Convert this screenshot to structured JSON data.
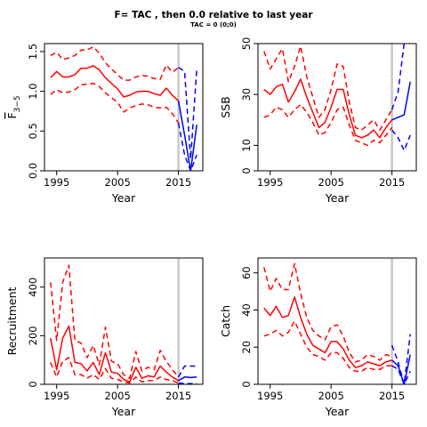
{
  "figure": {
    "title": "F= TAC , then 0.0  relative to last year",
    "subtitle": "TAC = 0 (0;0)"
  },
  "colors": {
    "historic": "#ff0000",
    "forecast": "#0000ff",
    "marker_line": "#c8c8c8"
  },
  "chart_data": [
    {
      "type": "line",
      "id": "fbar",
      "ylabel": "F3-5 (bar)",
      "xlabel": "Year",
      "xlim": [
        1993,
        2019
      ],
      "ylim": [
        0,
        1.6
      ],
      "xticks": [
        1995,
        2005,
        2015
      ],
      "yticks": [
        "0.0",
        "0.5",
        "1.0",
        "1.5"
      ],
      "ytick_values": [
        0,
        0.5,
        1.0,
        1.5
      ],
      "assessment_year": 2015,
      "series": [
        {
          "part": "historic",
          "style": "solid",
          "x": [
            1994,
            1995,
            1996,
            1997,
            1998,
            1999,
            2000,
            2001,
            2002,
            2003,
            2004,
            2005,
            2006,
            2007,
            2008,
            2009,
            2010,
            2011,
            2012,
            2013,
            2014,
            2015
          ],
          "values": [
            1.17,
            1.25,
            1.18,
            1.18,
            1.21,
            1.29,
            1.29,
            1.32,
            1.27,
            1.17,
            1.1,
            1.03,
            0.93,
            0.95,
            0.99,
            1.0,
            1.0,
            0.97,
            0.95,
            1.04,
            0.95,
            0.88
          ]
        },
        {
          "part": "historic",
          "style": "dashed",
          "x": [
            1994,
            1995,
            1996,
            1997,
            1998,
            1999,
            2000,
            2001,
            2002,
            2003,
            2004,
            2005,
            2006,
            2007,
            2008,
            2009,
            2010,
            2011,
            2012,
            2013,
            2014,
            2015
          ],
          "values": [
            1.45,
            1.49,
            1.4,
            1.42,
            1.45,
            1.52,
            1.52,
            1.56,
            1.48,
            1.36,
            1.28,
            1.21,
            1.14,
            1.14,
            1.18,
            1.2,
            1.19,
            1.16,
            1.15,
            1.33,
            1.24,
            1.3
          ]
        },
        {
          "part": "historic",
          "style": "dashed",
          "x": [
            1994,
            1995,
            1996,
            1997,
            1998,
            1999,
            2000,
            2001,
            2002,
            2003,
            2004,
            2005,
            2006,
            2007,
            2008,
            2009,
            2010,
            2011,
            2012,
            2013,
            2014,
            2015
          ],
          "values": [
            0.96,
            1.02,
            0.98,
            0.99,
            1.02,
            1.08,
            1.09,
            1.1,
            1.06,
            0.98,
            0.92,
            0.86,
            0.74,
            0.79,
            0.82,
            0.84,
            0.83,
            0.8,
            0.79,
            0.8,
            0.72,
            0.6
          ]
        },
        {
          "part": "forecast",
          "style": "solid",
          "x": [
            2015,
            2016,
            2017,
            2018
          ],
          "values": [
            0.88,
            0.45,
            0.0,
            0.58
          ]
        },
        {
          "part": "forecast",
          "style": "dashed",
          "x": [
            2015,
            2016,
            2017,
            2018
          ],
          "values": [
            1.3,
            1.25,
            0.15,
            1.28
          ]
        },
        {
          "part": "forecast",
          "style": "dashed",
          "x": [
            2015,
            2016,
            2017,
            2018
          ],
          "values": [
            0.6,
            0.2,
            0.0,
            0.2
          ]
        }
      ]
    },
    {
      "type": "line",
      "id": "ssb",
      "ylabel": "SSB",
      "xlabel": "Year",
      "xlim": [
        1993,
        2019
      ],
      "ylim": [
        0,
        50
      ],
      "xticks": [
        1995,
        2005,
        2015
      ],
      "yticks": [
        "0",
        "10",
        "30",
        "50"
      ],
      "ytick_values": [
        0,
        10,
        30,
        50
      ],
      "assessment_year": 2015,
      "series": [
        {
          "part": "historic",
          "style": "solid",
          "x": [
            1994,
            1995,
            1996,
            1997,
            1998,
            1999,
            2000,
            2001,
            2002,
            2003,
            2004,
            2005,
            2006,
            2007,
            2008,
            2009,
            2010,
            2011,
            2012,
            2013,
            2014,
            2015
          ],
          "values": [
            32,
            30,
            33,
            34,
            27,
            31,
            36,
            29,
            23,
            17,
            19,
            25,
            32,
            32,
            22,
            14,
            13,
            14,
            16,
            13,
            17,
            20
          ]
        },
        {
          "part": "historic",
          "style": "dashed",
          "x": [
            1994,
            1995,
            1996,
            1997,
            1998,
            1999,
            2000,
            2001,
            2002,
            2003,
            2004,
            2005,
            2006,
            2007,
            2008,
            2009,
            2010,
            2011,
            2012,
            2013,
            2014,
            2015
          ],
          "values": [
            47,
            40,
            44,
            48,
            35,
            41,
            49,
            37,
            29,
            21,
            24,
            32,
            42,
            41,
            27,
            17,
            16,
            18,
            20,
            16,
            20,
            24
          ]
        },
        {
          "part": "historic",
          "style": "dashed",
          "x": [
            1994,
            1995,
            1996,
            1997,
            1998,
            1999,
            2000,
            2001,
            2002,
            2003,
            2004,
            2005,
            2006,
            2007,
            2008,
            2009,
            2010,
            2011,
            2012,
            2013,
            2014,
            2015
          ],
          "values": [
            21,
            22,
            25,
            24,
            21,
            24,
            26,
            23,
            19,
            14,
            15,
            19,
            24,
            25,
            18,
            12,
            11,
            10,
            12,
            11,
            14,
            17
          ]
        },
        {
          "part": "forecast",
          "style": "solid",
          "x": [
            2015,
            2016,
            2017,
            2018
          ],
          "values": [
            20,
            21,
            22,
            35
          ]
        },
        {
          "part": "forecast",
          "style": "dashed",
          "x": [
            2015,
            2016,
            2017,
            2018
          ],
          "values": [
            24,
            31,
            50,
            55
          ]
        },
        {
          "part": "forecast",
          "style": "dashed",
          "x": [
            2015,
            2016,
            2017,
            2018
          ],
          "values": [
            16,
            13,
            8,
            14
          ]
        }
      ]
    },
    {
      "type": "line",
      "id": "recruitment",
      "ylabel": "Recruitment",
      "xlabel": "Year",
      "xlim": [
        1993,
        2019
      ],
      "ylim": [
        0,
        520
      ],
      "xticks": [
        1995,
        2005,
        2015
      ],
      "yticks": [
        "0",
        "200",
        "400"
      ],
      "ytick_values": [
        0,
        200,
        400
      ],
      "assessment_year": 2015,
      "series": [
        {
          "part": "historic",
          "style": "solid",
          "x": [
            1994,
            1995,
            1996,
            1997,
            1998,
            1999,
            2000,
            2001,
            2002,
            2003,
            2004,
            2005,
            2006,
            2007,
            2008,
            2009,
            2010,
            2011,
            2012,
            2013,
            2014,
            2015
          ],
          "values": [
            190,
            60,
            190,
            240,
            90,
            85,
            55,
            90,
            40,
            130,
            50,
            45,
            20,
            10,
            70,
            25,
            35,
            30,
            75,
            50,
            30,
            15
          ]
        },
        {
          "part": "historic",
          "style": "dashed",
          "x": [
            1994,
            1995,
            1996,
            1997,
            1998,
            1999,
            2000,
            2001,
            2002,
            2003,
            2004,
            2005,
            2006,
            2007,
            2008,
            2009,
            2010,
            2011,
            2012,
            2013,
            2014,
            2015
          ],
          "values": [
            420,
            180,
            420,
            490,
            180,
            170,
            110,
            160,
            80,
            235,
            95,
            85,
            40,
            25,
            135,
            55,
            70,
            60,
            140,
            95,
            60,
            30
          ]
        },
        {
          "part": "historic",
          "style": "dashed",
          "x": [
            1994,
            1995,
            1996,
            1997,
            1998,
            1999,
            2000,
            2001,
            2002,
            2003,
            2004,
            2005,
            2006,
            2007,
            2008,
            2009,
            2010,
            2011,
            2012,
            2013,
            2014,
            2015
          ],
          "values": [
            90,
            30,
            95,
            110,
            40,
            40,
            25,
            40,
            20,
            65,
            25,
            20,
            10,
            5,
            30,
            10,
            15,
            15,
            30,
            20,
            15,
            5
          ]
        },
        {
          "part": "forecast",
          "style": "solid",
          "x": [
            2015,
            2016,
            2017,
            2018
          ],
          "values": [
            15,
            30,
            28,
            30
          ]
        },
        {
          "part": "forecast",
          "style": "dashed",
          "x": [
            2015,
            2016,
            2017,
            2018
          ],
          "values": [
            30,
            75,
            75,
            75
          ]
        },
        {
          "part": "forecast",
          "style": "dashed",
          "x": [
            2015,
            2016,
            2017,
            2018
          ],
          "values": [
            5,
            3,
            3,
            3
          ]
        }
      ]
    },
    {
      "type": "line",
      "id": "catch",
      "ylabel": "Catch",
      "xlabel": "Year",
      "xlim": [
        1993,
        2019
      ],
      "ylim": [
        0,
        68
      ],
      "xticks": [
        1995,
        2005,
        2015
      ],
      "yticks": [
        "0",
        "20",
        "40",
        "60"
      ],
      "ytick_values": [
        0,
        20,
        40,
        60
      ],
      "assessment_year": 2015,
      "series": [
        {
          "part": "historic",
          "style": "solid",
          "x": [
            1994,
            1995,
            1996,
            1997,
            1998,
            1999,
            2000,
            2001,
            2002,
            2003,
            2004,
            2005,
            2006,
            2007,
            2008,
            2009,
            2010,
            2011,
            2012,
            2013,
            2014,
            2015
          ],
          "values": [
            41,
            37,
            42,
            36,
            37,
            47,
            36,
            27,
            21,
            19,
            17,
            23,
            23,
            19,
            13,
            9,
            10,
            12,
            11,
            10,
            12,
            13
          ]
        },
        {
          "part": "historic",
          "style": "dashed",
          "x": [
            1994,
            1995,
            1996,
            1997,
            1998,
            1999,
            2000,
            2001,
            2002,
            2003,
            2004,
            2005,
            2006,
            2007,
            2008,
            2009,
            2010,
            2011,
            2012,
            2013,
            2014,
            2015
          ],
          "values": [
            63,
            50,
            57,
            51,
            51,
            65,
            49,
            36,
            29,
            26,
            24,
            31,
            32,
            26,
            17,
            12,
            13,
            16,
            15,
            13,
            16,
            15
          ]
        },
        {
          "part": "historic",
          "style": "dashed",
          "x": [
            1994,
            1995,
            1996,
            1997,
            1998,
            1999,
            2000,
            2001,
            2002,
            2003,
            2004,
            2005,
            2006,
            2007,
            2008,
            2009,
            2010,
            2011,
            2012,
            2013,
            2014,
            2015
          ],
          "values": [
            26,
            27,
            29,
            26,
            28,
            34,
            27,
            20,
            16,
            15,
            13,
            17,
            17,
            14,
            9,
            7,
            7,
            9,
            8,
            8,
            10,
            10
          ]
        },
        {
          "part": "forecast",
          "style": "solid",
          "x": [
            2015,
            2016,
            2017,
            2018
          ],
          "values": [
            13,
            10,
            0,
            16
          ]
        },
        {
          "part": "forecast",
          "style": "dashed",
          "x": [
            2015,
            2016,
            2017,
            2018
          ],
          "values": [
            21,
            12,
            0,
            27
          ]
        },
        {
          "part": "forecast",
          "style": "dashed",
          "x": [
            2015,
            2016,
            2017,
            2018
          ],
          "values": [
            10,
            8,
            0,
            7
          ]
        }
      ]
    }
  ]
}
